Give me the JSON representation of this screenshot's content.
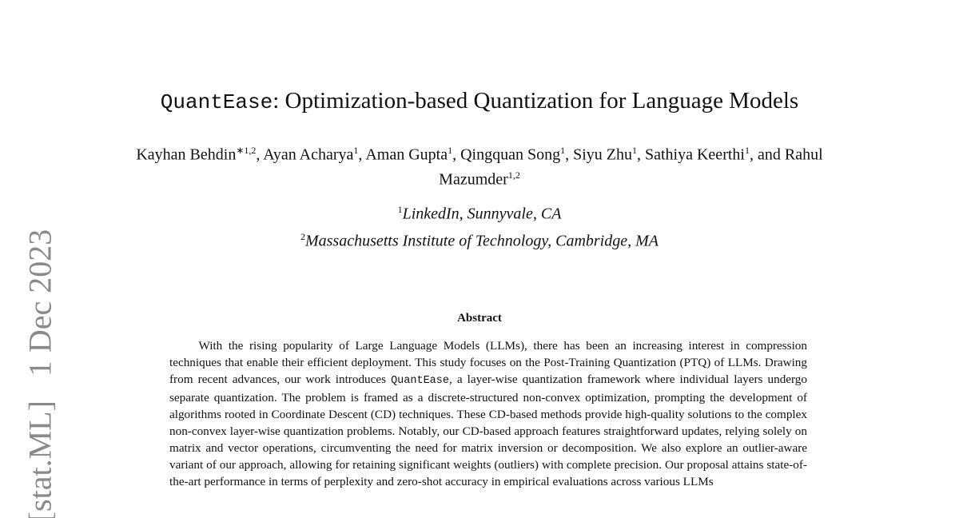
{
  "title": {
    "name_mono": "QuantEase",
    "rest": ": Optimization-based Quantization for Language Models"
  },
  "authors": [
    {
      "name": "Kayhan Behdin",
      "sup": "∗1,2",
      "sep": ", "
    },
    {
      "name": "Ayan Acharya",
      "sup": "1",
      "sep": ", "
    },
    {
      "name": "Aman Gupta",
      "sup": "1",
      "sep": ", "
    },
    {
      "name": "Qingquan Song",
      "sup": "1",
      "sep": ", "
    },
    {
      "name": "Siyu Zhu",
      "sup": "1",
      "sep": ", "
    },
    {
      "name": "Sathiya Keerthi",
      "sup": "1",
      "sep": ", and "
    },
    {
      "name": "Rahul Mazumder",
      "sup": "1,2",
      "sep": ""
    }
  ],
  "affiliations": [
    {
      "sup": "1",
      "text": "LinkedIn, Sunnyvale, CA"
    },
    {
      "sup": "2",
      "text": "Massachusetts Institute of Technology, Cambridge, MA"
    }
  ],
  "abstract": {
    "heading": "Abstract",
    "part1": "With the rising popularity of Large Language Models (LLMs), there has been an increasing inter­est in compression techniques that enable their efficient deployment. This study focuses on the Post-Training Quantization (PTQ) of LLMs. Drawing from recent advances, our work introduces ",
    "mono": "QuantEase",
    "part2": ", a layer-wise quantization framework where individual layers undergo separate quantization. The problem is framed as a discrete-structured non-convex optimization, prompting the development of algorithms rooted in Coordinate Descent (CD) techniques. These CD-based methods provide high-quality solutions to the complex non-convex layer-wise quantization problems. Notably, our CD-based approach features straightforward updates, relying solely on matrix and vector operations, circumventing the need for ma­trix inversion or decomposition. We also explore an outlier-aware variant of our approach, allowing for retaining significant weights (outliers) with complete precision. Our proposal attains state-of-the-art performance in terms of perplexity and zero-shot accuracy in empirical evaluations across various LLMs"
  },
  "side_stamp": "[stat.ML]   1 Dec 2023"
}
